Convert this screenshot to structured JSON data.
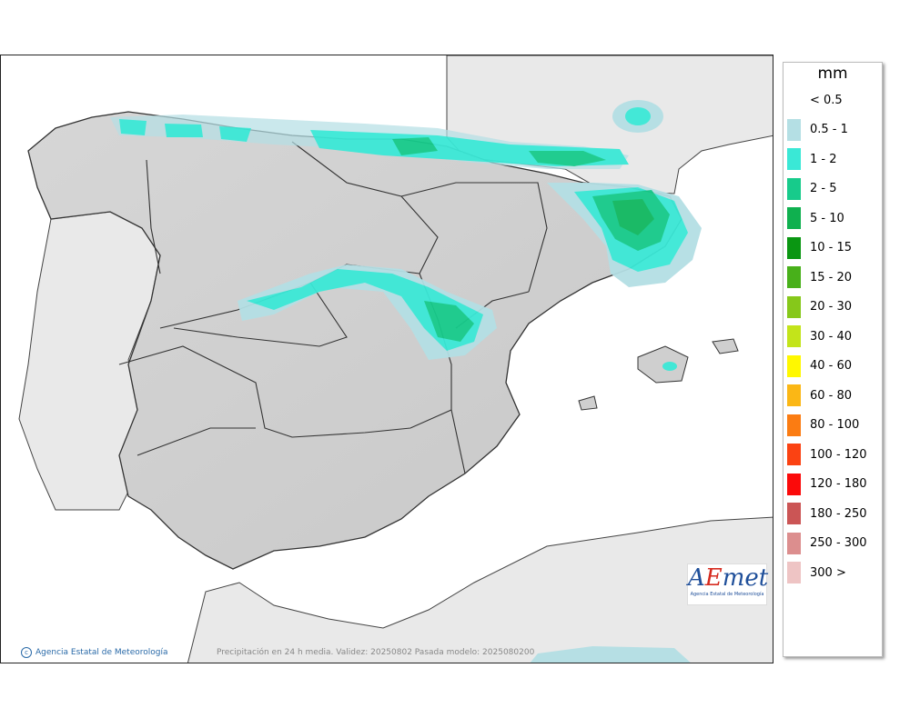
{
  "legend": {
    "unit": "mm",
    "items": [
      {
        "label": "< 0.5",
        "color": "#ffffff"
      },
      {
        "label": "0.5 - 1",
        "color": "#b4dfe4"
      },
      {
        "label": "1 - 2",
        "color": "#3ae8d6"
      },
      {
        "label": "2 - 5",
        "color": "#17cb8b"
      },
      {
        "label": "5 - 10",
        "color": "#0fb04f"
      },
      {
        "label": "10 - 15",
        "color": "#0a9612"
      },
      {
        "label": "15 - 20",
        "color": "#48b01a"
      },
      {
        "label": "20 - 30",
        "color": "#86c81a"
      },
      {
        "label": "30 - 40",
        "color": "#c3e41a"
      },
      {
        "label": "40 - 60",
        "color": "#fff800"
      },
      {
        "label": "60 - 80",
        "color": "#fbb715"
      },
      {
        "label": "80 - 100",
        "color": "#fb7c12"
      },
      {
        "label": "100 - 120",
        "color": "#fb4212"
      },
      {
        "label": "120 - 180",
        "color": "#fb0a0a"
      },
      {
        "label": "180 - 250",
        "color": "#cb5555"
      },
      {
        "label": "250 - 300",
        "color": "#dc8e8e"
      },
      {
        "label": "300 >",
        "color": "#eec4c4"
      }
    ]
  },
  "map": {
    "credit": "Agencia Estatal de Meteorología",
    "caption": "Precipitación en 24 h media. Validez: 20250802 Pasada modelo: 2025080200",
    "logo_text_a": "A",
    "logo_text_e": "E",
    "logo_text_rest": "met",
    "logo_subtitle": "Agencia Estatal de Meteorología"
  }
}
